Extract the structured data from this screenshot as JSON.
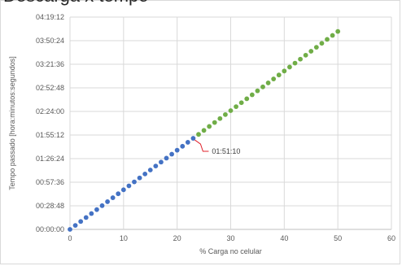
{
  "page_title": "Descarga x tempo",
  "chart_data": {
    "type": "scatter",
    "title": "",
    "xlabel": "% Carga no celular",
    "ylabel": "Tempo passado [hora:minutos:segundos]",
    "xlim": [
      0,
      60
    ],
    "ylim_seconds": [
      0,
      15552
    ],
    "x_ticks": [
      "0",
      "10",
      "20",
      "30",
      "40",
      "50",
      "60"
    ],
    "y_ticks": [
      "00:00:00",
      "00:28:48",
      "00:57:36",
      "01:26:24",
      "01:55:12",
      "02:24:00",
      "02:52:48",
      "03:21:36",
      "03:50:24",
      "04:19:12"
    ],
    "grid": true,
    "legend": "none",
    "series": [
      {
        "color": "#4472c4",
        "x": [
          0,
          1,
          2,
          3,
          4,
          5,
          6,
          7,
          8,
          9,
          10,
          11,
          12,
          13,
          14,
          15,
          16,
          17,
          18,
          19,
          20,
          21,
          22,
          23
        ],
        "y_seconds": [
          0,
          290,
          580,
          870,
          1160,
          1450,
          1740,
          2030,
          2320,
          2610,
          2900,
          3190,
          3480,
          3770,
          4060,
          4350,
          4640,
          4930,
          5220,
          5510,
          5800,
          6090,
          6380,
          6670
        ]
      },
      {
        "color": "#70ad47",
        "x": [
          24,
          25,
          26,
          27,
          28,
          29,
          30,
          31,
          32,
          33,
          34,
          35,
          36,
          37,
          38,
          39,
          40,
          41,
          42,
          43,
          44,
          45,
          46,
          47,
          48,
          49,
          50
        ],
        "y_seconds": [
          6960,
          7250,
          7540,
          7830,
          8120,
          8410,
          8700,
          8990,
          9280,
          9570,
          9860,
          10150,
          10440,
          10730,
          11020,
          11310,
          11600,
          11890,
          12180,
          12470,
          12760,
          13050,
          13340,
          13630,
          13920,
          14210,
          14500
        ]
      }
    ],
    "annotation": {
      "text": "01:51:10",
      "x": 23,
      "y_seconds": 6670,
      "line_color": "#e0202a"
    }
  }
}
